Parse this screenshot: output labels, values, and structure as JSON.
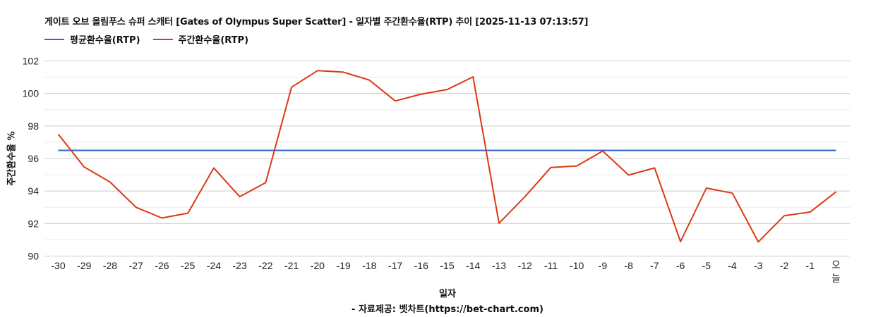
{
  "title": "게이트 오브 올림푸스 슈퍼 스캐터 [Gates of Olympus Super Scatter] - 일자별 주간환수율(RTP) 추이 [2025-11-13 07:13:57]",
  "legend": [
    {
      "label": "평균환수율(RTP)",
      "color": "#3366cc"
    },
    {
      "label": "주간환수율(RTP)",
      "color": "#dc3912"
    }
  ],
  "y_axis_label": "주간환수율 %",
  "x_axis_label": "일자",
  "source": "- 자료제공: 벳차트(https://bet-chart.com)",
  "chart_data": {
    "type": "line",
    "title": "게이트 오브 올림푸스 슈퍼 스캐터 [Gates of Olympus Super Scatter] - 일자별 주간환수율(RTP) 추이 [2025-11-13 07:13:57]",
    "xlabel": "일자",
    "ylabel": "주간환수율 %",
    "ylim": [
      90,
      102
    ],
    "yticks": [
      90,
      92,
      94,
      96,
      98,
      100,
      102
    ],
    "grid": true,
    "legend_position": "top-left",
    "categories": [
      "-30",
      "-29",
      "-28",
      "-27",
      "-26",
      "-25",
      "-24",
      "-23",
      "-22",
      "-21",
      "-20",
      "-19",
      "-18",
      "-17",
      "-16",
      "-15",
      "-14",
      "-13",
      "-12",
      "-11",
      "-10",
      "-9",
      "-8",
      "-7",
      "-6",
      "-5",
      "-4",
      "-3",
      "-2",
      "-1",
      "오늘"
    ],
    "series": [
      {
        "name": "평균환수율(RTP)",
        "color": "#3366cc",
        "values": [
          96.5,
          96.5,
          96.5,
          96.5,
          96.5,
          96.5,
          96.5,
          96.5,
          96.5,
          96.5,
          96.5,
          96.5,
          96.5,
          96.5,
          96.5,
          96.5,
          96.5,
          96.5,
          96.5,
          96.5,
          96.5,
          96.5,
          96.5,
          96.5,
          96.5,
          96.5,
          96.5,
          96.5,
          96.5,
          96.5,
          96.5
        ]
      },
      {
        "name": "주간환수율(RTP)",
        "color": "#dc3912",
        "values": [
          97.5,
          95.48,
          94.55,
          93.0,
          92.34,
          92.64,
          95.42,
          93.65,
          94.52,
          100.39,
          101.4,
          101.31,
          100.82,
          99.54,
          99.96,
          100.24,
          101.02,
          92.02,
          93.65,
          95.45,
          95.54,
          96.46,
          94.98,
          95.42,
          90.89,
          94.18,
          93.87,
          90.87,
          92.48,
          92.71,
          93.95
        ]
      }
    ]
  }
}
